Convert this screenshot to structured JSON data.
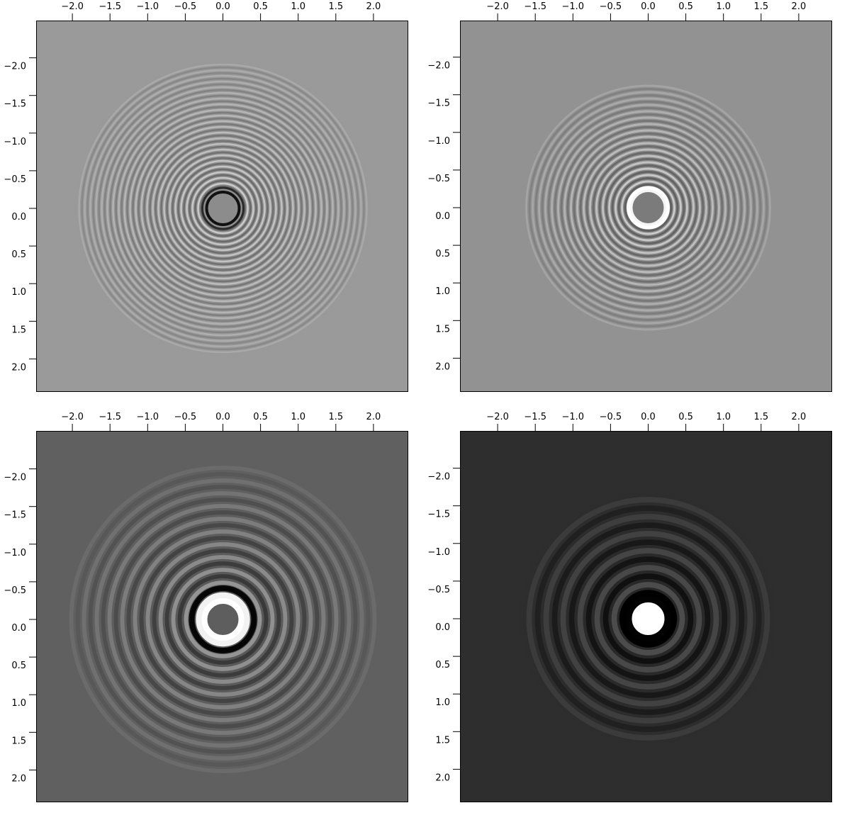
{
  "figure": {
    "panels": [
      {
        "id": "panel-1",
        "colors": {
          "background": "#9a9a9a",
          "ring_light": "#d8d8d8",
          "ring_dark": "#5e5e5e",
          "inner_disk": "#8c8c8c",
          "edge_highlight": "#111111"
        },
        "x_ticks": [
          "−2.0",
          "−1.5",
          "−1.0",
          "−0.5",
          "0.0",
          "0.5",
          "1.0",
          "1.5",
          "2.0"
        ],
        "y_ticks": [
          "−2.0",
          "−1.5",
          "−1.0",
          "−0.5",
          "0.0",
          "0.5",
          "1.0",
          "1.5",
          "2.0"
        ]
      },
      {
        "id": "panel-2",
        "colors": {
          "background": "#929292",
          "ring_light": "#dcdcdc",
          "ring_dark": "#555555",
          "inner_disk": "#7b7b7b",
          "edge_highlight": "#f4f4f4"
        },
        "x_ticks": [
          "−2.0",
          "−1.5",
          "−1.0",
          "−0.5",
          "0.0",
          "0.5",
          "1.0",
          "1.5",
          "2.0"
        ],
        "y_ticks": [
          "−2.0",
          "−1.5",
          "−1.0",
          "−0.5",
          "0.0",
          "0.5",
          "1.0",
          "1.5",
          "2.0"
        ]
      },
      {
        "id": "panel-3",
        "colors": {
          "background": "#606060",
          "ring_light": "#a8a8a8",
          "ring_dark": "#2a2a2a",
          "inner_disk": "#5e5e5e",
          "edge_highlight": "#ffffff"
        },
        "x_ticks": [
          "−2.0",
          "−1.5",
          "−1.0",
          "−0.5",
          "0.0",
          "0.5",
          "1.0",
          "1.5",
          "2.0"
        ],
        "y_ticks": [
          "−2.0",
          "−1.5",
          "−1.0",
          "−0.5",
          "0.0",
          "0.5",
          "1.0",
          "1.5",
          "2.0"
        ]
      },
      {
        "id": "panel-4",
        "colors": {
          "background": "#2e2e2e",
          "ring_light": "#585858",
          "ring_dark": "#050505",
          "inner_disk": "#ffffff",
          "edge_highlight": "#ffffff"
        },
        "x_ticks": [
          "−2.0",
          "−1.5",
          "−1.0",
          "−0.5",
          "0.0",
          "0.5",
          "1.0",
          "1.5",
          "2.0"
        ],
        "y_ticks": [
          "−2.0",
          "−1.5",
          "−1.0",
          "−0.5",
          "0.0",
          "0.5",
          "1.0",
          "1.5",
          "2.0"
        ]
      }
    ]
  }
}
